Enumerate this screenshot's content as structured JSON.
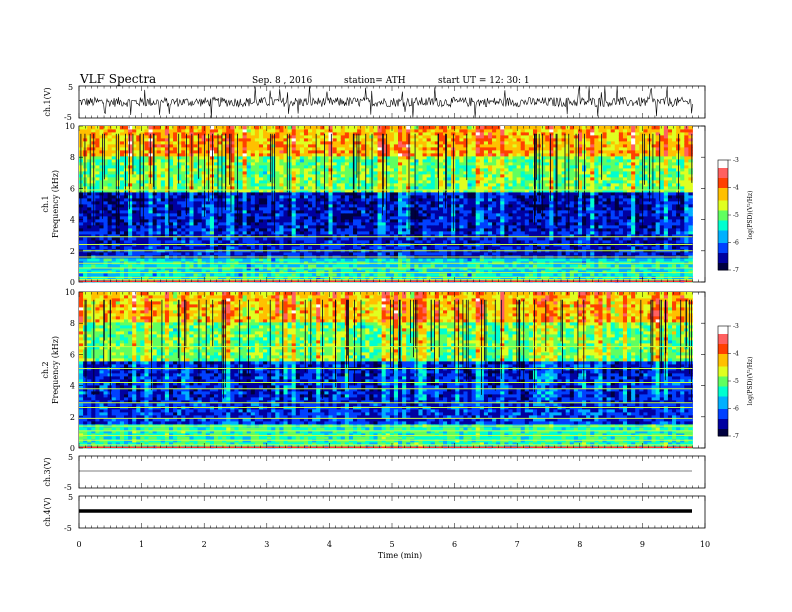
{
  "header": {
    "title": "VLF  Spectra",
    "date": "Sep. 8  ,  2016",
    "station": "station= ATH",
    "start": "start  UT  =    12: 30: 1"
  },
  "colors": {
    "spectrogram_ramp": [
      "#000040",
      "#0000a0",
      "#0040ff",
      "#00b0ff",
      "#00ffd0",
      "#60ff60",
      "#e0ff20",
      "#ffc000",
      "#ff4000",
      "#ff6060",
      "#ffffff"
    ],
    "trace": "#000000"
  },
  "chart_data": [
    {
      "type": "line",
      "name": "ch1-waveform",
      "ylabel": "ch.1(V)",
      "ylim": [
        -5,
        5
      ],
      "yticks": [
        "5",
        "-5"
      ],
      "xlim": [
        0,
        10
      ],
      "description_values": {
        "baseline_v": 0,
        "typical_amplitude_v": 1.5,
        "spike_amplitude_v": 5
      }
    },
    {
      "type": "heatmap",
      "name": "ch1-spectrogram",
      "ylabel": "ch.1\nFrequency  (kHz)",
      "ylim": [
        0,
        10
      ],
      "yticks": [
        "0",
        "2",
        "4",
        "6",
        "8",
        "10"
      ],
      "xlim": [
        0,
        9.8
      ],
      "colorbar": {
        "label": "log(PSD)(V²/Hz)",
        "ticks": [
          "-3",
          "-4",
          "-5",
          "-6",
          "-7"
        ],
        "range": [
          -7,
          -3
        ]
      },
      "lines_khz": [
        0.15,
        0.3,
        0.6,
        0.9,
        1.2,
        1.6,
        2.0,
        2.4,
        2.9,
        5.9
      ],
      "band_levels": [
        {
          "from_khz": 0,
          "to_khz": 1.5,
          "level": -5.6
        },
        {
          "from_khz": 1.5,
          "to_khz": 3.2,
          "level": -6.5
        },
        {
          "from_khz": 3.2,
          "to_khz": 5.8,
          "level": -6.7
        },
        {
          "from_khz": 5.8,
          "to_khz": 6.1,
          "level": -5.2
        },
        {
          "from_khz": 6.1,
          "to_khz": 8.0,
          "level": -5.2
        },
        {
          "from_khz": 8.0,
          "to_khz": 10,
          "level": -4.4
        }
      ]
    },
    {
      "type": "heatmap",
      "name": "ch2-spectrogram",
      "ylabel": "ch.2\nFrequency  (kHz)",
      "ylim": [
        0,
        10
      ],
      "yticks": [
        "0",
        "2",
        "4",
        "6",
        "8",
        "10"
      ],
      "xlim": [
        0,
        9.8
      ],
      "colorbar": {
        "label": "log(PSD)(V²/Hz)",
        "ticks": [
          "-3",
          "-4",
          "-5",
          "-6",
          "-7"
        ],
        "range": [
          -7,
          -3
        ]
      },
      "lines_khz": [
        0.2,
        0.5,
        0.8,
        1.1,
        1.4,
        1.9,
        2.6,
        2.9,
        3.8,
        4.2,
        5.1,
        6.5
      ],
      "band_levels": [
        {
          "from_khz": 0,
          "to_khz": 1.5,
          "level": -5.4
        },
        {
          "from_khz": 1.5,
          "to_khz": 3.0,
          "level": -6.4
        },
        {
          "from_khz": 3.0,
          "to_khz": 5.5,
          "level": -6.6
        },
        {
          "from_khz": 5.5,
          "to_khz": 8.0,
          "level": -5.2
        },
        {
          "from_khz": 8.0,
          "to_khz": 10,
          "level": -4.5
        }
      ]
    },
    {
      "type": "line",
      "name": "ch3-waveform",
      "ylabel": "ch.3(V)",
      "ylim": [
        -5,
        5
      ],
      "yticks": [
        "5",
        "-5"
      ],
      "xlim": [
        0,
        10
      ],
      "description_values": {
        "baseline_v": 0
      }
    },
    {
      "type": "line",
      "name": "ch4-waveform",
      "ylabel": "ch.4(V)",
      "ylim": [
        -5,
        5
      ],
      "yticks": [
        "5",
        "-5"
      ],
      "xlim": [
        0,
        10
      ],
      "description_values": {
        "baseline_v": 0
      }
    }
  ],
  "xaxis": {
    "label": "Time  (min)",
    "ticks": [
      "0",
      "1",
      "2",
      "3",
      "4",
      "5",
      "6",
      "7",
      "8",
      "9",
      "10"
    ]
  }
}
